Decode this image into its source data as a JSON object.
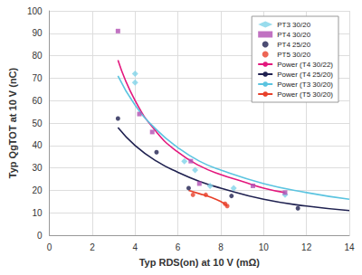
{
  "chart_data": {
    "type": "scatter",
    "x_label": "Typ RDS(on) at 10 V (mΩ)",
    "y_label": "Typ QgTOT at 10 V (nC)",
    "xlim": [
      0,
      14
    ],
    "xticks": [
      0,
      2,
      4,
      6,
      8,
      10,
      12,
      14
    ],
    "ylim": [
      0,
      100
    ],
    "yticks": [
      0,
      10,
      20,
      30,
      40,
      50,
      60,
      70,
      80,
      90,
      100
    ],
    "grid": true,
    "legend": "top-right",
    "series": [
      {
        "name": "PT3 30/20",
        "type": "scatter",
        "marker": "diamond",
        "color": "#7fd3e8",
        "x": [
          4.0,
          4.0,
          6.3,
          6.8,
          7.5,
          8.6,
          11.0
        ],
        "values": [
          72,
          68,
          33,
          29,
          22,
          21,
          18
        ]
      },
      {
        "name": "PT4 30/20",
        "type": "scatter",
        "marker": "square",
        "color": "#b24fb3",
        "x": [
          3.2,
          4.2,
          4.8,
          6.6,
          7.0,
          9.5,
          11.0
        ],
        "values": [
          91,
          54,
          46,
          33,
          23,
          22,
          19
        ]
      },
      {
        "name": "PT4 25/20",
        "type": "scatter",
        "marker": "circle",
        "color": "#1f2150",
        "x": [
          3.2,
          5.0,
          6.5,
          8.5,
          11.6
        ],
        "values": [
          52,
          37,
          21,
          17.5,
          12
        ]
      },
      {
        "name": "PT5 30/20",
        "type": "scatter",
        "marker": "circle",
        "color": "#e8402a",
        "x": [
          6.7,
          7.3,
          8.2,
          8.3
        ],
        "values": [
          18,
          18,
          14,
          13
        ]
      },
      {
        "name": "Power (T4 30/22)",
        "type": "line",
        "line_style": "solid",
        "color": "#e3177d",
        "x": [
          3.2,
          4,
          5,
          6,
          7,
          8,
          9,
          10,
          11
        ],
        "values": [
          78,
          60,
          46,
          37,
          31,
          27,
          24,
          21,
          19
        ]
      },
      {
        "name": "Power (T4 25/20)",
        "type": "line",
        "line_style": "solid",
        "color": "#1f2150",
        "x": [
          3.2,
          4,
          5,
          6,
          7,
          8,
          10,
          12,
          14
        ],
        "values": [
          48,
          40,
          33,
          28,
          24,
          21,
          16,
          13,
          11
        ]
      },
      {
        "name": "Power (T3 30/20)",
        "type": "line",
        "line_style": "solid",
        "color": "#5bc4e0",
        "x": [
          3.2,
          4,
          5,
          6,
          7,
          8,
          10,
          12,
          14
        ],
        "values": [
          71,
          58,
          47,
          39,
          33,
          29,
          23,
          19,
          16
        ]
      },
      {
        "name": "Power (T5 30/20)",
        "type": "line",
        "line_style": "solid",
        "color": "#e8402a",
        "x": [
          6.5,
          7,
          7.5,
          8,
          8.3
        ],
        "values": [
          20,
          18.5,
          17,
          15,
          13
        ]
      }
    ]
  }
}
